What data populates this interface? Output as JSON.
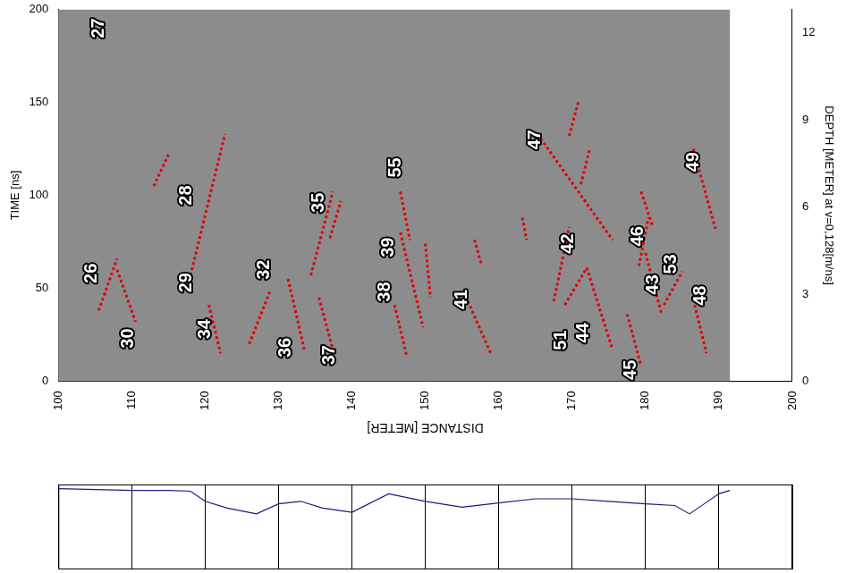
{
  "chart_data": [
    {
      "type": "line",
      "x_label": "DISTANCE [METER]",
      "y_label": "TIME [ns]",
      "y2_label": "DEPTH [METER] at v=0,128[m/ns]",
      "xlim": [
        100,
        200
      ],
      "xticks": [
        100,
        110,
        120,
        130,
        140,
        150,
        160,
        170,
        180,
        190,
        200
      ],
      "ylim": [
        0,
        200
      ],
      "yticks": [
        0,
        50,
        100,
        150,
        200
      ],
      "y2lim": [
        0,
        12.8
      ],
      "y2ticks": [
        0,
        3,
        6,
        9,
        12
      ],
      "grid": false,
      "series": [
        {
          "color": "#e00000",
          "line_style": "dotted",
          "marker": "none",
          "x": [
            105.5,
            108
          ],
          "values": [
            38,
            66
          ]
        },
        {
          "color": "#e00000",
          "line_style": "dotted",
          "marker": "none",
          "x": [
            108,
            110.5
          ],
          "values": [
            60,
            32
          ]
        },
        {
          "color": "#e00000",
          "line_style": "dotted",
          "marker": "none",
          "x": [
            113,
            115
          ],
          "values": [
            105,
            122
          ]
        },
        {
          "color": "#e00000",
          "line_style": "dotted",
          "marker": "none",
          "x": [
            118,
            122.7
          ],
          "values": [
            57,
            133
          ]
        },
        {
          "color": "#e00000",
          "line_style": "dotted",
          "marker": "none",
          "x": [
            120.5,
            122.1
          ],
          "values": [
            41,
            15
          ]
        },
        {
          "color": "#e00000",
          "line_style": "dotted",
          "marker": "none",
          "x": [
            126,
            128.8
          ],
          "values": [
            20,
            48
          ]
        },
        {
          "color": "#e00000",
          "line_style": "dotted",
          "marker": "none",
          "x": [
            131.3,
            133.5
          ],
          "values": [
            55,
            17
          ]
        },
        {
          "color": "#e00000",
          "line_style": "dotted",
          "marker": "none",
          "x": [
            135.5,
            137.4
          ],
          "values": [
            45,
            17
          ]
        },
        {
          "color": "#e00000",
          "line_style": "dotted",
          "marker": "none",
          "x": [
            134.4,
            137.4
          ],
          "values": [
            57,
            102
          ]
        },
        {
          "color": "#e00000",
          "line_style": "dotted",
          "marker": "none",
          "x": [
            137,
            138.5
          ],
          "values": [
            77,
            97
          ]
        },
        {
          "color": "#e00000",
          "line_style": "dotted",
          "marker": "none",
          "x": [
            146.6,
            149.7
          ],
          "values": [
            80,
            29
          ]
        },
        {
          "color": "#e00000",
          "line_style": "dotted",
          "marker": "none",
          "x": [
            145.8,
            147.5
          ],
          "values": [
            41,
            13
          ]
        },
        {
          "color": "#e00000",
          "line_style": "dotted",
          "marker": "none",
          "x": [
            146.6,
            147.9
          ],
          "values": [
            102,
            76
          ]
        },
        {
          "color": "#e00000",
          "line_style": "dotted",
          "marker": "none",
          "x": [
            150,
            150.7
          ],
          "values": [
            74,
            45
          ]
        },
        {
          "color": "#e00000",
          "line_style": "dotted",
          "marker": "none",
          "x": [
            155.8,
            158.9
          ],
          "values": [
            43,
            15
          ]
        },
        {
          "color": "#e00000",
          "line_style": "dotted",
          "marker": "none",
          "x": [
            156.7,
            157.7
          ],
          "values": [
            76,
            62
          ]
        },
        {
          "color": "#e00000",
          "line_style": "dotted",
          "marker": "none",
          "x": [
            163.2,
            163.8
          ],
          "values": [
            88,
            76
          ]
        },
        {
          "color": "#e00000",
          "line_style": "dotted",
          "marker": "none",
          "x": [
            165.3,
            175.5
          ],
          "values": [
            133,
            76
          ]
        },
        {
          "color": "#e00000",
          "line_style": "dotted",
          "marker": "none",
          "x": [
            169.6,
            170.9
          ],
          "values": [
            132,
            151
          ]
        },
        {
          "color": "#e00000",
          "line_style": "dotted",
          "marker": "none",
          "x": [
            171.2,
            172.4
          ],
          "values": [
            106,
            125
          ]
        },
        {
          "color": "#e00000",
          "line_style": "dotted",
          "marker": "none",
          "x": [
            167.5,
            169.6
          ],
          "values": [
            43,
            83
          ]
        },
        {
          "color": "#e00000",
          "line_style": "dotted",
          "marker": "none",
          "x": [
            169,
            172
          ],
          "values": [
            41,
            61
          ]
        },
        {
          "color": "#e00000",
          "line_style": "dotted",
          "marker": "none",
          "x": [
            172,
            175.5
          ],
          "values": [
            61,
            17
          ]
        },
        {
          "color": "#e00000",
          "line_style": "dotted",
          "marker": "none",
          "x": [
            177.5,
            179.4
          ],
          "values": [
            36,
            8
          ]
        },
        {
          "color": "#e00000",
          "line_style": "dotted",
          "marker": "none",
          "x": [
            179.1,
            180.4
          ],
          "values": [
            62,
            88
          ]
        },
        {
          "color": "#e00000",
          "line_style": "dotted",
          "marker": "none",
          "x": [
            179.4,
            181
          ],
          "values": [
            102,
            83
          ]
        },
        {
          "color": "#e00000",
          "line_style": "dotted",
          "marker": "none",
          "x": [
            180,
            182.2
          ],
          "values": [
            69,
            36
          ]
        },
        {
          "color": "#e00000",
          "line_style": "dotted",
          "marker": "none",
          "x": [
            182.5,
            185
          ],
          "values": [
            41,
            59
          ]
        },
        {
          "color": "#e00000",
          "line_style": "dotted",
          "marker": "none",
          "x": [
            186.7,
            188.3
          ],
          "values": [
            41,
            15
          ]
        },
        {
          "color": "#e00000",
          "line_style": "dotted",
          "marker": "none",
          "x": [
            186.5,
            189.6
          ],
          "values": [
            125,
            81
          ]
        }
      ],
      "annotations": [
        {
          "text": "27",
          "x": 105.5,
          "y": 190
        },
        {
          "text": "26",
          "x": 104.5,
          "y": 58
        },
        {
          "text": "30",
          "x": 109.5,
          "y": 23
        },
        {
          "text": "28",
          "x": 117.5,
          "y": 100
        },
        {
          "text": "29",
          "x": 117.5,
          "y": 53
        },
        {
          "text": "34",
          "x": 120,
          "y": 28
        },
        {
          "text": "32",
          "x": 128,
          "y": 60
        },
        {
          "text": "36",
          "x": 131,
          "y": 18
        },
        {
          "text": "37",
          "x": 137,
          "y": 14
        },
        {
          "text": "35",
          "x": 135.5,
          "y": 96
        },
        {
          "text": "38",
          "x": 144.5,
          "y": 48
        },
        {
          "text": "39",
          "x": 145,
          "y": 72
        },
        {
          "text": "55",
          "x": 146,
          "y": 115
        },
        {
          "text": "41",
          "x": 155,
          "y": 44
        },
        {
          "text": "42",
          "x": 169.5,
          "y": 74
        },
        {
          "text": "51",
          "x": 168.5,
          "y": 22
        },
        {
          "text": "44",
          "x": 171.5,
          "y": 26
        },
        {
          "text": "45",
          "x": 178,
          "y": 6
        },
        {
          "text": "46",
          "x": 179,
          "y": 78
        },
        {
          "text": "43",
          "x": 181,
          "y": 52
        },
        {
          "text": "53",
          "x": 183.5,
          "y": 63
        },
        {
          "text": "48",
          "x": 187.5,
          "y": 46
        },
        {
          "text": "47",
          "x": 165,
          "y": 130
        },
        {
          "text": "49",
          "x": 186.5,
          "y": 118
        }
      ]
    },
    {
      "type": "line",
      "xlim": [
        100,
        200
      ],
      "xticks": [
        100,
        110,
        120,
        130,
        140,
        150,
        160,
        170,
        180,
        190,
        200
      ],
      "ylim": [
        0,
        100
      ],
      "grid": true,
      "tick_labels": false,
      "series": [
        {
          "color": "#1a1a80",
          "line_style": "solid",
          "marker": "none",
          "x": [
            100,
            105,
            110,
            115,
            118,
            120,
            123,
            127,
            130,
            133,
            136,
            140,
            145,
            150,
            155,
            160,
            165,
            170,
            175,
            180,
            184,
            186,
            188,
            190,
            191.5
          ],
          "values": [
            95,
            94,
            93,
            93,
            92,
            80,
            72,
            65,
            77,
            80,
            72,
            67,
            89,
            80,
            73,
            78,
            83,
            83,
            80,
            77,
            75,
            65,
            77,
            89,
            93
          ]
        }
      ]
    }
  ]
}
